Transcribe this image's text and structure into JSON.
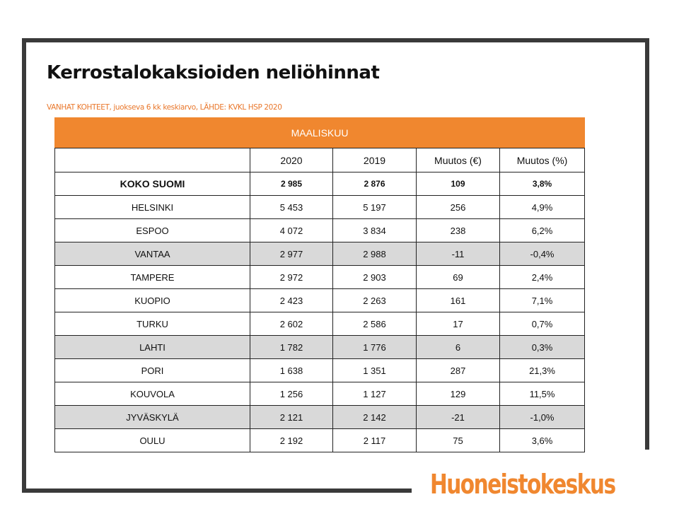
{
  "title": "Kerrostalokaksioiden neliöhinnat",
  "subtitle": "VANHAT KOHTEET, juokseva 6 kk keskiarvo, LÄHDE: KVKL HSP 2020",
  "table": {
    "banner": "MAALISKUU",
    "headers": [
      "",
      "2020",
      "2019",
      "Muutos (€)",
      "Muutos (%)"
    ],
    "rows": [
      {
        "city": "KOKO SUOMI",
        "y2020": "2 985",
        "y2019": "2 876",
        "change_eur": "109",
        "change_pct": "3,8%"
      },
      {
        "city": "HELSINKI",
        "y2020": "5 453",
        "y2019": "5 197",
        "change_eur": "256",
        "change_pct": "4,9%"
      },
      {
        "city": "ESPOO",
        "y2020": "4 072",
        "y2019": "3 834",
        "change_eur": "238",
        "change_pct": "6,2%"
      },
      {
        "city": "VANTAA",
        "y2020": "2 977",
        "y2019": "2 988",
        "change_eur": "-11",
        "change_pct": "-0,4%"
      },
      {
        "city": "TAMPERE",
        "y2020": "2 972",
        "y2019": "2 903",
        "change_eur": "69",
        "change_pct": "2,4%"
      },
      {
        "city": "KUOPIO",
        "y2020": "2 423",
        "y2019": "2 263",
        "change_eur": "161",
        "change_pct": "7,1%"
      },
      {
        "city": "TURKU",
        "y2020": "2 602",
        "y2019": "2 586",
        "change_eur": "17",
        "change_pct": "0,7%"
      },
      {
        "city": "LAHTI",
        "y2020": "1 782",
        "y2019": "1 776",
        "change_eur": "6",
        "change_pct": "0,3%"
      },
      {
        "city": "PORI",
        "y2020": "1 638",
        "y2019": "1 351",
        "change_eur": "287",
        "change_pct": "21,3%"
      },
      {
        "city": "KOUVOLA",
        "y2020": "1 256",
        "y2019": "1 127",
        "change_eur": "129",
        "change_pct": "11,5%"
      },
      {
        "city": "JYVÄSKYLÄ",
        "y2020": "2 121",
        "y2019": "2 142",
        "change_eur": "-21",
        "change_pct": "-1,0%"
      },
      {
        "city": "OULU",
        "y2020": "2 192",
        "y2019": "2 117",
        "change_eur": "75",
        "change_pct": "3,6%"
      }
    ]
  },
  "logo": "Huoneistokeskus",
  "colors": {
    "accent": "#f0872f",
    "shaded_row": "#d9d9d9",
    "frame": "#3a3a3a"
  }
}
